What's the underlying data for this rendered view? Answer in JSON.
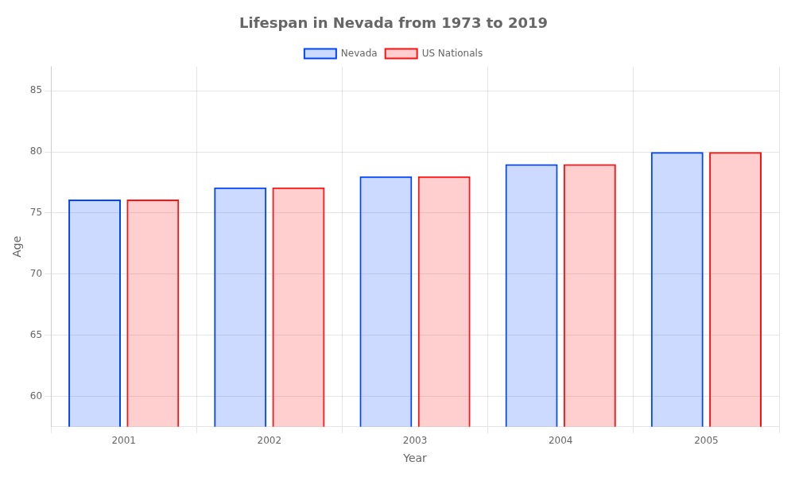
{
  "chart_data": {
    "type": "bar",
    "title": "Lifespan in Nevada from 1973 to 2019",
    "x_label": "Year",
    "y_label": "Age",
    "categories": [
      "2001",
      "2002",
      "2003",
      "2004",
      "2005"
    ],
    "series": [
      {
        "name": "Nevada",
        "color": "#0044ff",
        "values": [
          76.1,
          77.1,
          78.0,
          79.0,
          80.0
        ]
      },
      {
        "name": "US Nationals",
        "color": "#ff1111",
        "values": [
          76.1,
          77.1,
          78.0,
          79.0,
          80.0
        ]
      }
    ],
    "ylim": [
      57.5,
      87
    ],
    "yticks": [
      60,
      65,
      70,
      75,
      80,
      85
    ],
    "grid": true,
    "legend": "top"
  }
}
